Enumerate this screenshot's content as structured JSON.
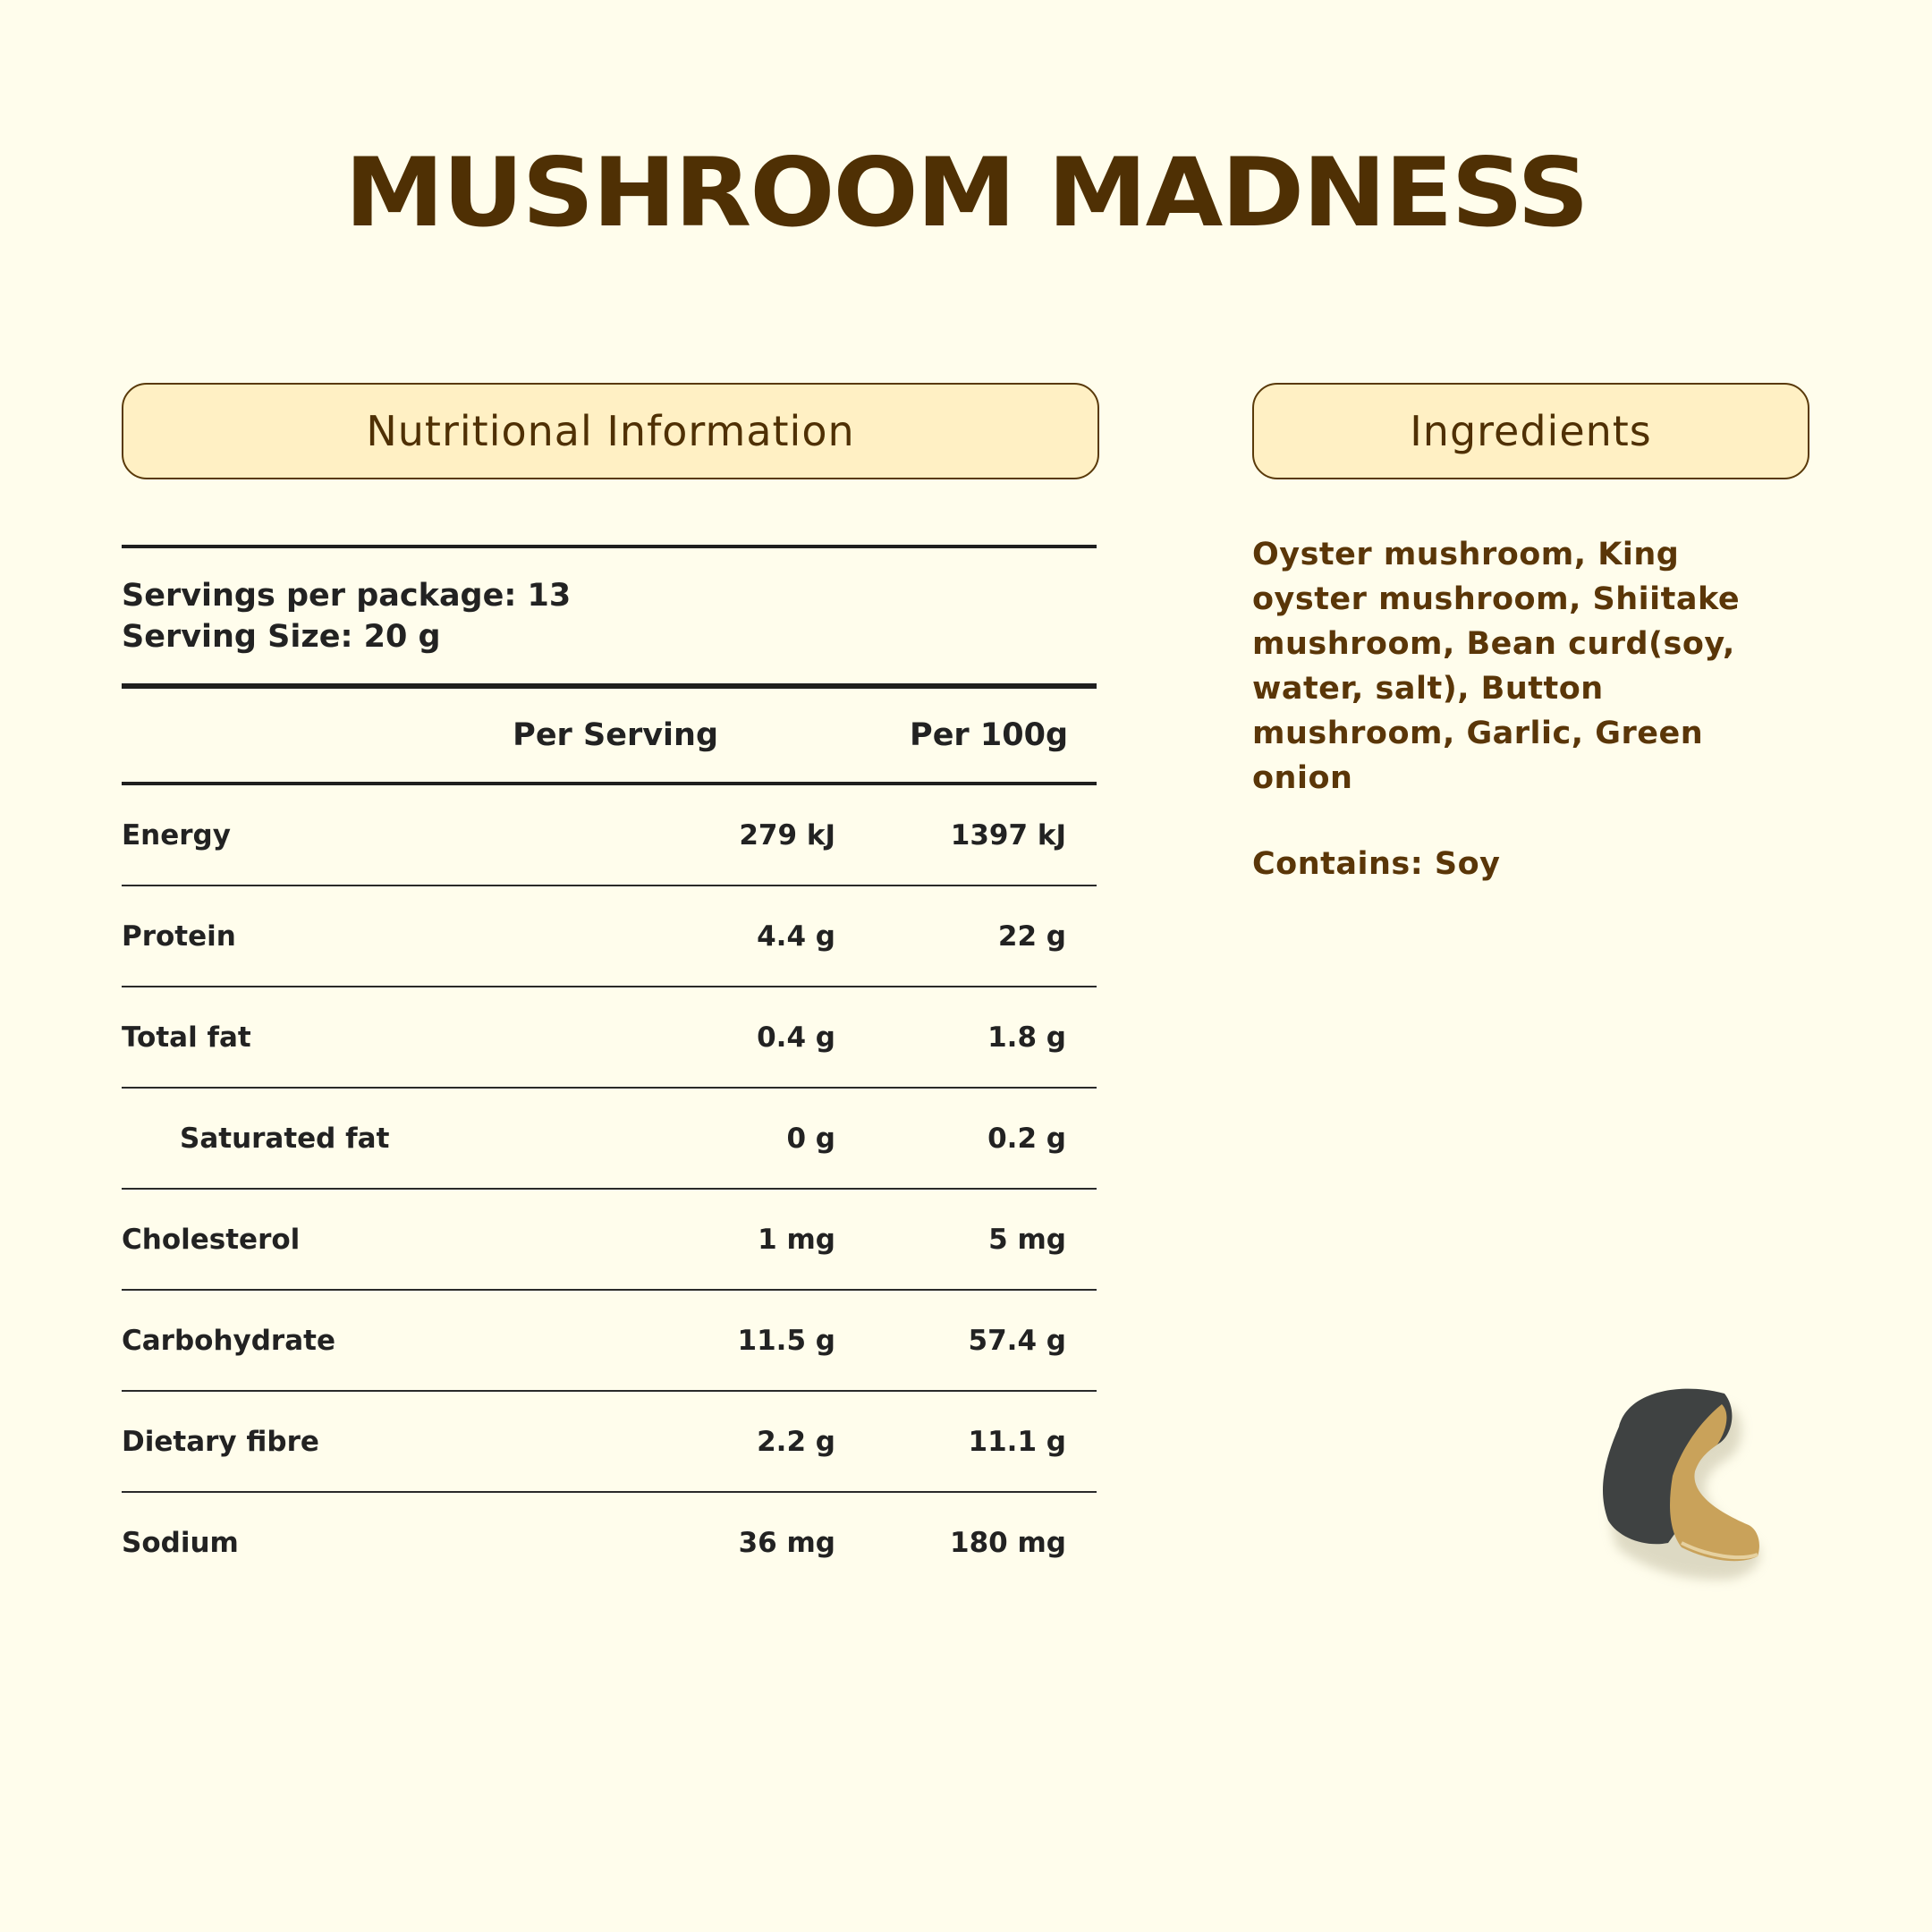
{
  "title": "MUSHROOM MADNESS",
  "nutrition": {
    "heading": "Nutritional Information",
    "servings_per_package": "Servings per package: 13",
    "serving_size": "Serving Size: 20 g",
    "columns": [
      "Per Serving",
      "Per 100g"
    ],
    "rows": [
      {
        "label": "Energy",
        "per_serving": "279 kJ",
        "per_100g": "1397 kJ"
      },
      {
        "label": "Protein",
        "per_serving": "4.4 g",
        "per_100g": "22 g"
      },
      {
        "label": "Total fat",
        "per_serving": "0.4 g",
        "per_100g": "1.8 g"
      },
      {
        "label": "Saturated fat",
        "per_serving": "0 g",
        "per_100g": "0.2 g"
      },
      {
        "label": "Cholesterol",
        "per_serving": "1 mg",
        "per_100g": "5 mg"
      },
      {
        "label": "Carbohydrate",
        "per_serving": "11.5 g",
        "per_100g": "57.4 g"
      },
      {
        "label": "Dietary fibre",
        "per_serving": "2.2 g",
        "per_100g": "11.1 g"
      },
      {
        "label": "Sodium",
        "per_serving": "36 mg",
        "per_100g": "180 mg"
      }
    ]
  },
  "ingredients": {
    "heading": "Ingredients",
    "list": "Oyster mushroom, King oyster mushroom, Shiitake mushroom, Bean curd(soy, water, salt), Button mushroom, Garlic, Green onion",
    "contains": "Contains: Soy"
  },
  "colors": {
    "background": "#fffdec",
    "brand_brown": "#4f3004",
    "pill_fill": "#fff0c4"
  },
  "image": "mushroom-chip-photo"
}
